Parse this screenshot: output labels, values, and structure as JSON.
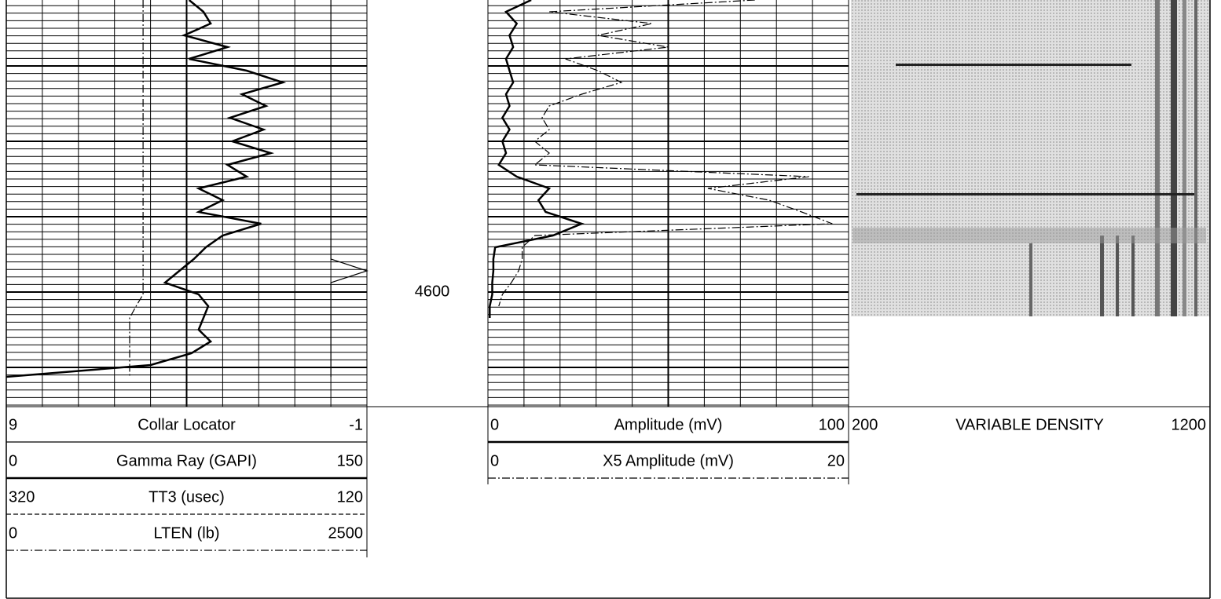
{
  "depth_label": 4600,
  "tracks": [
    {
      "curves": [
        {
          "name": "Collar Locator",
          "left": 9,
          "right": -1,
          "style": "solid",
          "values": [
            0,
            0,
            0,
            0,
            0,
            0,
            0,
            0,
            0,
            0,
            0,
            0,
            0,
            0,
            0,
            0,
            0,
            0,
            0,
            0,
            0,
            0,
            0,
            -1,
            0,
            0,
            0,
            0,
            0,
            0,
            0,
            0,
            0
          ]
        },
        {
          "name": "Gamma Ray (GAPI)",
          "left": 0,
          "right": 150,
          "style": "bold",
          "values": [
            76,
            82,
            85,
            74,
            92,
            76,
            100,
            115,
            98,
            108,
            93,
            107,
            94,
            110,
            92,
            100,
            80,
            90,
            80,
            106,
            90,
            83,
            78,
            72,
            66,
            80,
            84,
            82,
            80,
            85,
            77,
            60,
            0
          ]
        },
        {
          "name": "TT3 (usec)",
          "left": 320,
          "right": 120,
          "style": "dashed"
        },
        {
          "name": "LTEN (lb)",
          "left": 0,
          "right": 2500,
          "style": "dash-dot",
          "values": [
            948,
            948,
            948,
            948,
            948,
            948,
            948,
            948,
            948,
            948,
            948,
            948,
            948,
            948,
            948,
            948,
            948,
            948,
            948,
            948,
            948,
            948,
            948,
            948,
            948,
            948,
            900,
            855,
            855,
            855,
            855,
            855,
            855
          ]
        }
      ]
    },
    {
      "curves": [
        {
          "name": "Amplitude (mV)",
          "left": 0,
          "right": 100,
          "style": "bold",
          "values": [
            12,
            5,
            8,
            6,
            7,
            5,
            6,
            7,
            5,
            6,
            4,
            6,
            4,
            5,
            3,
            8,
            17,
            14,
            16,
            26,
            18,
            2,
            1.5,
            1.5,
            1.2,
            1.2,
            0.5,
            0.5
          ]
        },
        {
          "name": "X5 Amplitude (mV)",
          "left": 0,
          "right": 20,
          "style": "dash-dot",
          "values": [
            14.8,
            3.4,
            9.1,
            6.1,
            10,
            4.3,
            6.1,
            7.4,
            5.2,
            3.4,
            3,
            3.4,
            2.6,
            3.4,
            2.6,
            17.8,
            12.2,
            15.6,
            17.4,
            19.1,
            2.6,
            1.9,
            1.9,
            1.7,
            1.3,
            0.8,
            0.6
          ]
        }
      ]
    },
    {
      "curves": [
        {
          "name": "VARIABLE DENSITY",
          "left": 200,
          "right": 1200
        }
      ]
    }
  ]
}
